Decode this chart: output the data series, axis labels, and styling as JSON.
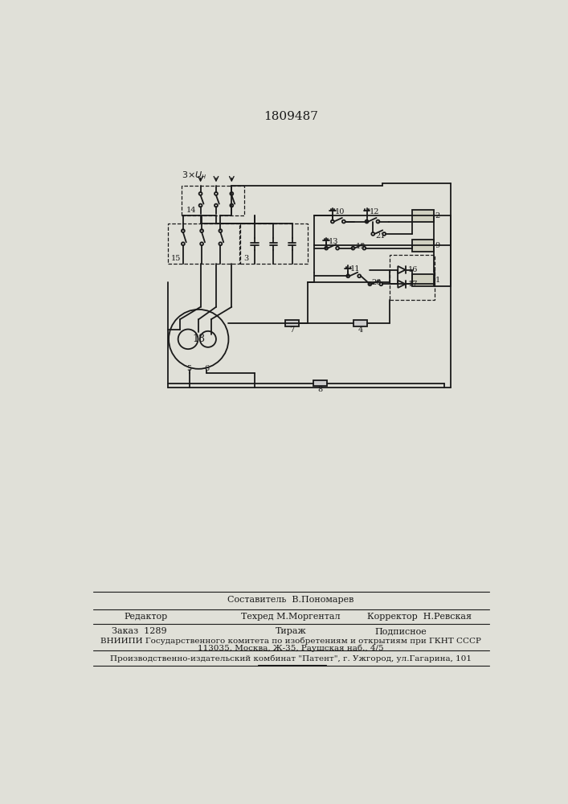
{
  "title": "1809487",
  "bg_color": "#e0e0d8",
  "line_color": "#1a1a1a",
  "footer": {
    "sestavitel": "Составитель  В.Пономарев",
    "redaktor": "Редактор",
    "tehred": "Техред М.Моргентал",
    "korrektor": "Корректор  Н.Ревская",
    "zakaz": "Заказ  1289",
    "tirazh": "Тираж",
    "podpisnoe": "Подписное",
    "vniip1": "ВНИИПИ Государственного комитета по изобретениям и открытиям при ГКНТ СССР",
    "vniip2": "113035, Москва, Ж-35, Раушская наб., 4/5",
    "patent": "Производственно-издательский комбинат \"Патент\", г. Ужгород, ул.Гагарина, 101"
  }
}
